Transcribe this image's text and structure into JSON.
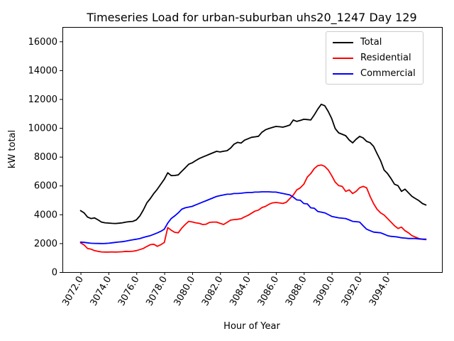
{
  "title": "Timeseries Load for urban-suburban uhs20_1247  Day 129",
  "chart_data": {
    "type": "line",
    "title": "Timeseries Load for urban-suburban uhs20_1247  Day 129",
    "xlabel": "Hour of Year",
    "ylabel": "kW total",
    "xlim": [
      3070.7,
      3097.9
    ],
    "ylim": [
      0,
      17000
    ],
    "grid": false,
    "x": {
      "start": 3072.0,
      "step": 0.25,
      "count": 100
    },
    "xticks": {
      "values": [
        3072,
        3074,
        3076,
        3078,
        3080,
        3082,
        3084,
        3086,
        3088,
        3090,
        3092,
        3094
      ],
      "labels": [
        "3072.0",
        "3074.0",
        "3076.0",
        "3078.0",
        "3080.0",
        "3082.0",
        "3084.0",
        "3086.0",
        "3088.0",
        "3090.0",
        "3092.0",
        "3094.0"
      ],
      "rotation_deg": 60
    },
    "yticks": {
      "values": [
        0,
        2000,
        4000,
        6000,
        8000,
        10000,
        12000,
        14000,
        16000
      ],
      "labels": [
        "0",
        "2000",
        "4000",
        "6000",
        "8000",
        "10000",
        "12000",
        "14000",
        "16000"
      ]
    },
    "legend": {
      "position": "upper right",
      "entries": [
        {
          "label": "Total",
          "color": "#000000"
        },
        {
          "label": "Residential",
          "color": "#ff0000"
        },
        {
          "label": "Commercial",
          "color": "#0000ff"
        }
      ]
    },
    "series": [
      {
        "name": "Total",
        "color": "#000000",
        "values": [
          4260,
          4110,
          3815,
          3715,
          3760,
          3620,
          3470,
          3420,
          3400,
          3380,
          3370,
          3390,
          3420,
          3470,
          3500,
          3520,
          3620,
          3900,
          4310,
          4800,
          5100,
          5450,
          5750,
          6100,
          6440,
          6890,
          6690,
          6700,
          6740,
          6990,
          7230,
          7480,
          7580,
          7730,
          7875,
          7980,
          8075,
          8180,
          8280,
          8375,
          8330,
          8380,
          8420,
          8600,
          8870,
          9000,
          8950,
          9150,
          9250,
          9350,
          9380,
          9420,
          9700,
          9870,
          9960,
          10030,
          10100,
          10080,
          10050,
          10120,
          10200,
          10550,
          10450,
          10520,
          10600,
          10580,
          10550,
          10900,
          11300,
          11640,
          11540,
          11140,
          10650,
          9960,
          9660,
          9560,
          9460,
          9165,
          8965,
          9215,
          9410,
          9310,
          9065,
          8980,
          8720,
          8225,
          7730,
          7085,
          6835,
          6490,
          6095,
          5995,
          5600,
          5750,
          5500,
          5255,
          5100,
          4955,
          4755,
          4650
        ]
      },
      {
        "name": "Residential",
        "color": "#ff0000",
        "values": [
          2030,
          1880,
          1640,
          1590,
          1490,
          1440,
          1400,
          1390,
          1390,
          1400,
          1390,
          1400,
          1410,
          1440,
          1430,
          1450,
          1490,
          1560,
          1640,
          1780,
          1900,
          1930,
          1790,
          1900,
          2050,
          3090,
          2900,
          2760,
          2725,
          3050,
          3300,
          3520,
          3480,
          3420,
          3380,
          3300,
          3320,
          3450,
          3470,
          3470,
          3380,
          3300,
          3450,
          3600,
          3640,
          3660,
          3700,
          3830,
          3930,
          4080,
          4230,
          4300,
          4480,
          4560,
          4700,
          4800,
          4830,
          4800,
          4760,
          4850,
          5100,
          5350,
          5700,
          5850,
          6095,
          6590,
          6835,
          7180,
          7380,
          7430,
          7330,
          7085,
          6690,
          6245,
          5995,
          5945,
          5600,
          5700,
          5450,
          5600,
          5850,
          5945,
          5850,
          5255,
          4755,
          4360,
          4110,
          3960,
          3715,
          3470,
          3220,
          3025,
          3120,
          2875,
          2725,
          2530,
          2430,
          2330,
          2280,
          2250
        ]
      },
      {
        "name": "Commercial",
        "color": "#0000ff",
        "values": [
          2080,
          2060,
          2030,
          2000,
          1990,
          1985,
          1980,
          1985,
          2000,
          2030,
          2060,
          2090,
          2110,
          2150,
          2200,
          2240,
          2280,
          2330,
          2400,
          2470,
          2530,
          2620,
          2720,
          2830,
          2975,
          3400,
          3715,
          3900,
          4110,
          4360,
          4460,
          4510,
          4560,
          4660,
          4760,
          4860,
          4950,
          5050,
          5150,
          5250,
          5300,
          5350,
          5400,
          5400,
          5450,
          5450,
          5470,
          5500,
          5520,
          5520,
          5550,
          5550,
          5570,
          5570,
          5570,
          5550,
          5550,
          5500,
          5450,
          5400,
          5350,
          5200,
          5005,
          4980,
          4755,
          4730,
          4460,
          4430,
          4210,
          4160,
          4110,
          3990,
          3865,
          3815,
          3765,
          3740,
          3715,
          3620,
          3520,
          3500,
          3470,
          3220,
          2975,
          2875,
          2775,
          2750,
          2725,
          2630,
          2530,
          2480,
          2460,
          2430,
          2380,
          2360,
          2330,
          2330,
          2330,
          2300,
          2280,
          2280
        ]
      }
    ]
  }
}
